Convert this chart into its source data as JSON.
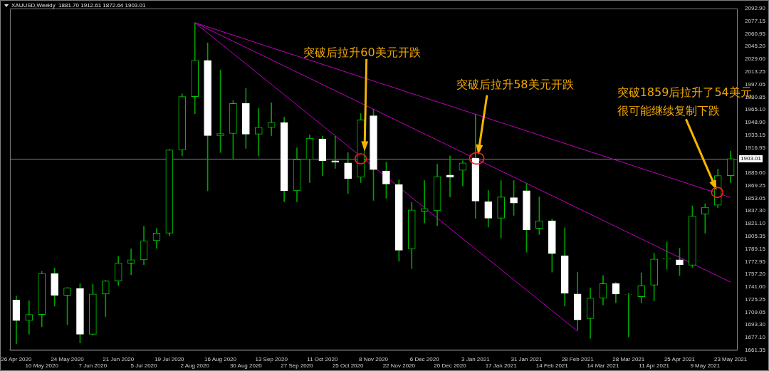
{
  "chart_data": {
    "type": "candlestick",
    "title": "XAUUSD,Weekly  1881.70 1912.61 1872.64 1903.01",
    "categories": [
      "26 Apr 2020",
      null,
      "10 May 2020",
      null,
      "24 May 2020",
      null,
      "7 Jun 2020",
      null,
      "21 Jun 2020",
      null,
      "5 Jul 2020",
      null,
      "19 Jul 2020",
      null,
      "2 Aug 2020",
      null,
      "16 Aug 2020",
      null,
      "30 Aug 2020",
      null,
      "13 Sep 2020",
      null,
      "27 Sep 2020",
      null,
      "11 Oct 2020",
      null,
      "25 Oct 2020",
      null,
      "8 Nov 2020",
      null,
      "22 Nov 2020",
      null,
      "6 Dec 2020",
      null,
      "20 Dec 2020",
      null,
      "3 Jan 2021",
      null,
      "17 Jan 2021",
      null,
      "31 Jan 2021",
      null,
      "14 Feb 2021",
      null,
      "28 Feb 2021",
      null,
      "14 Mar 2021",
      null,
      "28 Mar 2021",
      null,
      "11 Apr 2021",
      null,
      "25 Apr 2021",
      null,
      "9 May 2021",
      null,
      "23 May 2021"
    ],
    "ohlc": [
      [
        1724.4,
        1729.7,
        1669.1,
        1698.5
      ],
      [
        1698.5,
        1723.5,
        1681.2,
        1706.2
      ],
      [
        1706.2,
        1760.6,
        1690.7,
        1758.0
      ],
      [
        1758.0,
        1764.9,
        1716.6,
        1730.4
      ],
      [
        1730.4,
        1740.5,
        1693.3,
        1739.9
      ],
      [
        1739.0,
        1745.1,
        1670.0,
        1681.2
      ],
      [
        1681.2,
        1744.2,
        1680.0,
        1732.1
      ],
      [
        1732.1,
        1749.4,
        1703.7,
        1748.5
      ],
      [
        1748.5,
        1779.6,
        1742.5,
        1771.0
      ],
      [
        1771.0,
        1789.1,
        1756.3,
        1775.3
      ],
      [
        1775.3,
        1817.6,
        1769.2,
        1799.4
      ],
      [
        1799.4,
        1815.0,
        1789.9,
        1809.0
      ],
      [
        1809.0,
        1915.1,
        1805.5,
        1914.2
      ],
      [
        1914.2,
        1985.0,
        1906.5,
        1981.6
      ],
      [
        1981.6,
        2074.8,
        1960.0,
        2027.3
      ],
      [
        2027.3,
        2049.7,
        1862.5,
        1932.4
      ],
      [
        1932.4,
        2015.2,
        1910.8,
        1934.9
      ],
      [
        1934.9,
        1976.4,
        1902.1,
        1972.9
      ],
      [
        1972.9,
        1991.9,
        1916.0,
        1934.1
      ],
      [
        1934.1,
        1966.9,
        1906.5,
        1942.7
      ],
      [
        1942.7,
        1973.8,
        1932.4,
        1948.8
      ],
      [
        1948.8,
        1955.7,
        1848.6,
        1862.5
      ],
      [
        1862.5,
        1916.8,
        1848.6,
        1902.1
      ],
      [
        1902.1,
        1933.2,
        1872.8,
        1928.9
      ],
      [
        1928.1,
        1931.5,
        1881.4,
        1900.4
      ],
      [
        1900.4,
        1931.5,
        1890.9,
        1898.7
      ],
      [
        1897.8,
        1910.8,
        1859.0,
        1878.0
      ],
      [
        1879.7,
        1960.0,
        1872.8,
        1952.2
      ],
      [
        1957.4,
        1966.0,
        1850.4,
        1889.2
      ],
      [
        1887.5,
        1898.7,
        1853.0,
        1871.1
      ],
      [
        1870.2,
        1876.3,
        1773.5,
        1787.4
      ],
      [
        1789.1,
        1847.8,
        1764.1,
        1838.3
      ],
      [
        1836.6,
        1875.4,
        1821.9,
        1840.0
      ],
      [
        1837.4,
        1896.1,
        1818.4,
        1880.6
      ],
      [
        1882.3,
        1906.5,
        1854.7,
        1879.7
      ],
      [
        1888.4,
        1900.4,
        1868.5,
        1897.8
      ],
      [
        1903.9,
        1959.1,
        1827.9,
        1849.5
      ],
      [
        1848.6,
        1863.3,
        1816.7,
        1827.9
      ],
      [
        1827.9,
        1875.4,
        1802.9,
        1854.7
      ],
      [
        1853.8,
        1875.4,
        1831.4,
        1846.9
      ],
      [
        1862.5,
        1871.9,
        1784.8,
        1813.3
      ],
      [
        1815.0,
        1854.7,
        1807.2,
        1824.5
      ],
      [
        1824.5,
        1827.1,
        1759.7,
        1783.0
      ],
      [
        1780.5,
        1815.8,
        1716.6,
        1733.0
      ],
      [
        1732.1,
        1759.7,
        1686.4,
        1699.3
      ],
      [
        1701.0,
        1739.9,
        1676.0,
        1726.9
      ],
      [
        1726.9,
        1755.4,
        1718.3,
        1745.1
      ],
      [
        1745.1,
        1746.8,
        1720.9,
        1732.1
      ],
      [
        1731.0,
        1733.0,
        1677.7,
        1731.5
      ],
      [
        1728.7,
        1758.9,
        1720.9,
        1742.5
      ],
      [
        1743.3,
        1783.9,
        1723.5,
        1776.1
      ],
      [
        1776.1,
        1797.7,
        1763.2,
        1777.0
      ],
      [
        1775.3,
        1789.9,
        1755.4,
        1769.2
      ],
      [
        1768.4,
        1843.5,
        1765.8,
        1830.5
      ],
      [
        1833.1,
        1846.1,
        1809.0,
        1841.7
      ],
      [
        1844.3,
        1890.1,
        1840.9,
        1881.7
      ],
      [
        1881.7,
        1912.61,
        1872.64,
        1903.01
      ]
    ],
    "color": "#00a000",
    "colors": [
      "#ffffff",
      "#00c800",
      "#00c800",
      "#ffffff",
      "#00c800",
      "#ffffff",
      "#00c800",
      "#00c800",
      "#00c800",
      "#00c800",
      "#00c800",
      "#00c800",
      "#00c800",
      "#00c800",
      "#00c800",
      "#ffffff",
      "#00c800",
      "#00c800",
      "#ffffff",
      "#00c800",
      "#00c800",
      "#ffffff",
      "#00c800",
      "#00c800",
      "#ffffff",
      "#ffffff",
      "#ffffff",
      "#00c800",
      "#ffffff",
      "#ffffff",
      "#ffffff",
      "#00c800",
      "#00c800",
      "#00c800",
      "#ffffff",
      "#00c800",
      "#ffffff",
      "#ffffff",
      "#00c800",
      "#ffffff",
      "#ffffff",
      "#00c800",
      "#ffffff",
      "#ffffff",
      "#ffffff",
      "#00c800",
      "#00c800",
      "#ffffff",
      "#00c800",
      "#00c800",
      "#00c800",
      "#00c800",
      "#ffffff",
      "#00c800",
      "#00c800",
      "#00c800",
      "#00c800"
    ],
    "series": [
      {
        "type": "line",
        "x": [
          "2 Aug 2020",
          "23 May 2021"
        ],
        "values": [
          2075,
          1854
        ],
        "color": "#c000c0"
      },
      {
        "type": "line",
        "x": [
          "2 Aug 2020",
          "23 May 2021"
        ],
        "values": [
          2075,
          1747
        ],
        "color": "#c000c0"
      },
      {
        "type": "line",
        "x": [
          "2 Aug 2020",
          "28 Feb 2021"
        ],
        "values": [
          2075,
          1685
        ],
        "color": "#c000c0"
      }
    ],
    "ylim": [
      1661.35,
      2092.9
    ],
    "yticks": [
      {
        "value": 2092.9,
        "label": "2092.90"
      },
      {
        "value": 2077.15,
        "label": "2077.15"
      },
      {
        "value": 2060.95,
        "label": "2060.95"
      },
      {
        "value": 2045.2,
        "label": "2045.20"
      },
      {
        "value": 2029,
        "label": "2029.00"
      },
      {
        "value": 2013.25,
        "label": "2013.25"
      },
      {
        "value": 1997.05,
        "label": "1997.05"
      },
      {
        "value": 1980.85,
        "label": "1980.85"
      },
      {
        "value": 1965.1,
        "label": "1965.10"
      },
      {
        "value": 1948.9,
        "label": "1948.90"
      },
      {
        "value": 1933.15,
        "label": "1933.15"
      },
      {
        "value": 1916.95,
        "label": "1916.95"
      },
      {
        "value": 1885,
        "label": "1885.00"
      },
      {
        "value": 1869.25,
        "label": "1869.25"
      },
      {
        "value": 1853.05,
        "label": "1853.05"
      },
      {
        "value": 1837.3,
        "label": "1837.30"
      },
      {
        "value": 1821.1,
        "label": "1821.10"
      },
      {
        "value": 1805.35,
        "label": "1805.35"
      },
      {
        "value": 1789.15,
        "label": "1789.15"
      },
      {
        "value": 1772.95,
        "label": "1772.95"
      },
      {
        "value": 1757.2,
        "label": "1757.20"
      },
      {
        "value": 1741,
        "label": "1741.00"
      },
      {
        "value": 1725.25,
        "label": "1725.25"
      },
      {
        "value": 1709.05,
        "label": "1709.05"
      },
      {
        "value": 1693.3,
        "label": "1693.30"
      },
      {
        "value": 1677.1,
        "label": "1677.10"
      },
      {
        "value": 1661.35,
        "label": "1661.35"
      }
    ],
    "ref_lines": [
      {
        "axis": "y",
        "value": 1903.01,
        "label": "1903.01",
        "color": "#708090"
      }
    ],
    "annotations": [
      "突破后拉升60美元开跌",
      "突破后拉升58美元开跌",
      "突破1859后拉升了54美元",
      "很可能继续复制下跌"
    ],
    "grid": false,
    "legend": false
  }
}
